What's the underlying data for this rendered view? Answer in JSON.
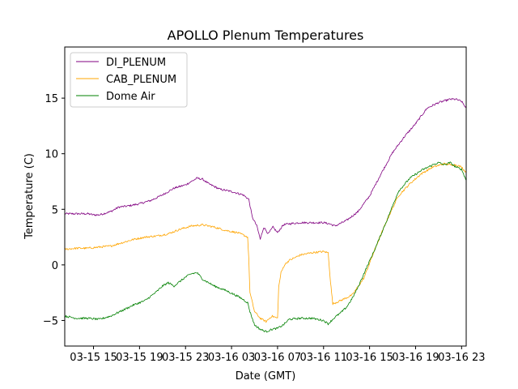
{
  "chart_data": {
    "type": "line",
    "title": "APOLLO Plenum Temperatures",
    "xlabel": "Date (GMT)",
    "ylabel": "Temperature (C)",
    "xlim": [
      12.5,
      47.4
    ],
    "ylim": [
      -7.3,
      19.6
    ],
    "x_ticks": [
      {
        "x": 15,
        "label": "03-15 15"
      },
      {
        "x": 19,
        "label": "03-15 19"
      },
      {
        "x": 23,
        "label": "03-15 23"
      },
      {
        "x": 27,
        "label": "03-16 03"
      },
      {
        "x": 31,
        "label": "03-16 07"
      },
      {
        "x": 35,
        "label": "03-16 11"
      },
      {
        "x": 39,
        "label": "03-16 15"
      },
      {
        "x": 43,
        "label": "03-16 19"
      },
      {
        "x": 47,
        "label": "03-16 23"
      }
    ],
    "y_ticks": [
      {
        "y": -5,
        "label": "−5"
      },
      {
        "y": 0,
        "label": "0"
      },
      {
        "y": 5,
        "label": "5"
      },
      {
        "y": 10,
        "label": "10"
      },
      {
        "y": 15,
        "label": "15"
      }
    ],
    "x_units": "hours since 2015-03-15 00:00 GMT",
    "legend_position": "top-left",
    "grid": false,
    "series": [
      {
        "name": "DI_PLENUM",
        "color": "#800080",
        "x": [
          12.5,
          13.5,
          14.5,
          15.0,
          15.5,
          16.5,
          17.2,
          18.0,
          19.0,
          20.0,
          21.0,
          22.0,
          23.0,
          23.5,
          24.0,
          24.5,
          25.0,
          26.0,
          27.0,
          28.0,
          28.5,
          28.8,
          29.2,
          29.5,
          29.8,
          30.2,
          30.6,
          31.0,
          31.5,
          32.0,
          33.0,
          34.0,
          35.0,
          35.5,
          36.0,
          37.0,
          38.0,
          39.0,
          40.0,
          41.0,
          42.0,
          43.0,
          44.0,
          45.0,
          46.0,
          46.5,
          47.0,
          47.4
        ],
        "values": [
          4.6,
          4.6,
          4.6,
          4.5,
          4.5,
          4.8,
          5.2,
          5.3,
          5.5,
          5.8,
          6.3,
          6.9,
          7.2,
          7.5,
          7.8,
          7.7,
          7.3,
          6.8,
          6.6,
          6.3,
          5.9,
          4.3,
          3.5,
          2.3,
          3.4,
          2.8,
          3.4,
          2.9,
          3.6,
          3.7,
          3.8,
          3.8,
          3.8,
          3.7,
          3.5,
          4.0,
          4.8,
          6.2,
          8.2,
          10.1,
          11.5,
          12.7,
          14.1,
          14.6,
          14.9,
          14.9,
          14.7,
          14.1
        ]
      },
      {
        "name": "CAB_PLENUM",
        "color": "#ffa500",
        "x": [
          12.5,
          13.5,
          14.5,
          15.5,
          16.5,
          17.5,
          18.5,
          19.5,
          20.5,
          21.5,
          22.5,
          23.5,
          24.5,
          25.5,
          26.5,
          27.5,
          28.0,
          28.4,
          28.5,
          28.6,
          29.0,
          29.5,
          30.0,
          30.5,
          31.0,
          31.1,
          31.3,
          31.6,
          32.0,
          33.0,
          34.0,
          35.0,
          35.4,
          35.6,
          35.8,
          36.5,
          37.5,
          38.5,
          39.5,
          40.5,
          41.5,
          42.5,
          43.5,
          44.5,
          45.5,
          46.0,
          46.5,
          47.0,
          47.4
        ],
        "values": [
          1.4,
          1.5,
          1.5,
          1.6,
          1.7,
          2.0,
          2.3,
          2.5,
          2.6,
          2.8,
          3.2,
          3.5,
          3.6,
          3.4,
          3.1,
          2.9,
          2.7,
          2.5,
          0.5,
          -2.5,
          -4.2,
          -4.8,
          -5.1,
          -4.6,
          -4.8,
          -2.0,
          -0.7,
          0.0,
          0.4,
          0.9,
          1.1,
          1.2,
          1.1,
          -1.5,
          -3.5,
          -3.2,
          -2.7,
          -1.2,
          1.5,
          4.0,
          6.2,
          7.3,
          8.2,
          8.8,
          9.1,
          9.0,
          9.0,
          8.8,
          8.3
        ]
      },
      {
        "name": "Dome Air",
        "color": "#008000",
        "x": [
          12.5,
          13.5,
          14.5,
          15.5,
          16.5,
          17.5,
          18.5,
          19.5,
          20.0,
          20.5,
          21.0,
          21.5,
          22.0,
          22.5,
          23.0,
          23.5,
          24.0,
          24.5,
          25.0,
          25.5,
          26.5,
          27.5,
          28.0,
          28.4,
          28.6,
          29.0,
          29.5,
          30.0,
          30.5,
          31.0,
          31.5,
          32.0,
          33.0,
          34.0,
          35.0,
          35.4,
          35.7,
          36.0,
          36.5,
          37.0,
          37.5,
          38.0,
          38.5,
          39.5,
          40.5,
          41.5,
          42.5,
          43.5,
          44.5,
          45.0,
          45.5,
          46.0,
          46.5,
          47.0,
          47.4
        ],
        "values": [
          -4.6,
          -4.8,
          -4.8,
          -4.9,
          -4.6,
          -4.1,
          -3.6,
          -3.2,
          -2.8,
          -2.4,
          -1.9,
          -1.6,
          -1.9,
          -1.5,
          -1.1,
          -0.8,
          -0.7,
          -1.3,
          -1.6,
          -1.9,
          -2.3,
          -2.8,
          -3.1,
          -3.4,
          -4.2,
          -5.4,
          -5.8,
          -6.0,
          -5.8,
          -5.7,
          -5.4,
          -4.9,
          -4.8,
          -4.8,
          -5.0,
          -5.3,
          -5.0,
          -4.7,
          -4.3,
          -3.8,
          -3.0,
          -2.0,
          -0.8,
          1.5,
          4.0,
          6.6,
          7.8,
          8.5,
          9.0,
          9.2,
          9.0,
          9.2,
          8.8,
          8.6,
          7.6
        ]
      }
    ]
  }
}
